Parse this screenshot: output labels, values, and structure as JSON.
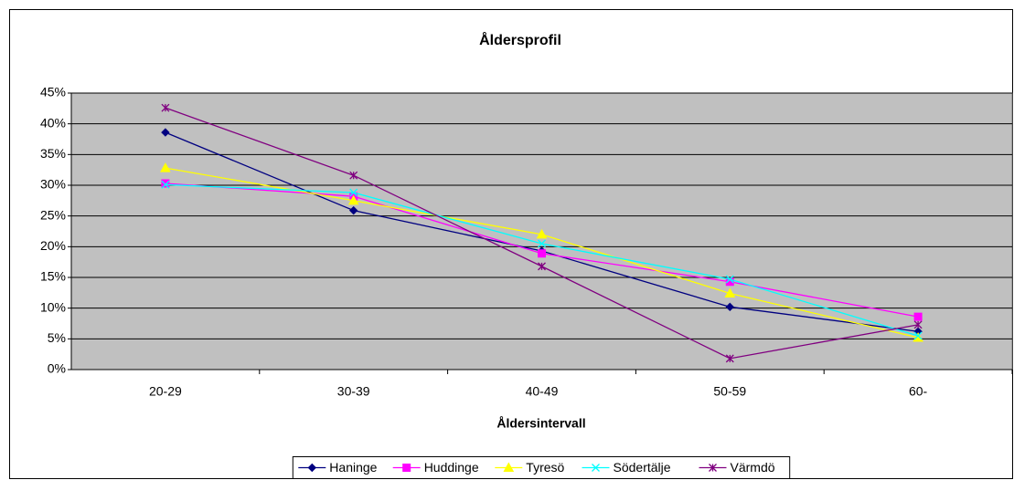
{
  "chart_data": {
    "type": "line",
    "title": "Åldersprofil",
    "x_label": "Åldersintervall",
    "categories": [
      "20-29",
      "30-39",
      "40-49",
      "50-59",
      "60-"
    ],
    "series": [
      {
        "name": "Haninge",
        "color": "#000080",
        "marker": "diamond",
        "values": [
          38.6,
          25.9,
          19.3,
          10.2,
          6.2
        ]
      },
      {
        "name": "Huddinge",
        "color": "#ff00ff",
        "marker": "square",
        "values": [
          30.3,
          28.2,
          18.9,
          14.3,
          8.6
        ]
      },
      {
        "name": "Tyresö",
        "color": "#ffff00",
        "marker": "triangle",
        "values": [
          32.8,
          27.5,
          22.0,
          12.4,
          5.2
        ]
      },
      {
        "name": "Södertälje",
        "color": "#00ffff",
        "marker": "x",
        "values": [
          30.1,
          28.8,
          20.5,
          14.7,
          5.5
        ]
      },
      {
        "name": "Värmdö",
        "color": "#800080",
        "marker": "star",
        "values": [
          42.6,
          31.6,
          16.8,
          1.8,
          7.3
        ]
      }
    ],
    "ylim": [
      0,
      45
    ],
    "yticks": [
      {
        "value": 0,
        "label": "0%"
      },
      {
        "value": 5,
        "label": "5%"
      },
      {
        "value": 10,
        "label": "10%"
      },
      {
        "value": 15,
        "label": "15%"
      },
      {
        "value": 20,
        "label": "20%"
      },
      {
        "value": 25,
        "label": "25%"
      },
      {
        "value": 30,
        "label": "30%"
      },
      {
        "value": 35,
        "label": "35%"
      },
      {
        "value": 40,
        "label": "40%"
      },
      {
        "value": 45,
        "label": "45%"
      }
    ],
    "grid": true,
    "legend": "bottom",
    "plot_background": "#c0c0c0"
  }
}
